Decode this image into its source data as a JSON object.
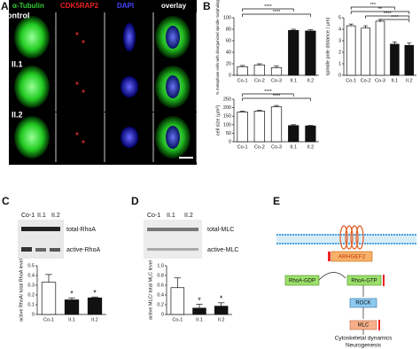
{
  "panel_a": {
    "label": "A",
    "columns": [
      "α-Tubulin",
      "CDK5RAP2",
      "DAPI",
      "overlay"
    ],
    "rows": [
      "control",
      "II.1",
      "II.2"
    ]
  },
  "panel_b": {
    "label": "B"
  },
  "panel_c": {
    "label": "C",
    "lanes": [
      "Co-1",
      "II.1",
      "II.2"
    ],
    "bands": [
      "total-RhoA",
      "active-RhoA"
    ]
  },
  "panel_d": {
    "label": "D",
    "lanes": [
      "Co-1",
      "II.1",
      "II.2"
    ],
    "bands": [
      "total-MLC",
      "active-MLC"
    ]
  },
  "panel_e": {
    "label": "E",
    "nodes": [
      "ARHGEF2",
      "RhoA-GDP",
      "RhoA-GTP",
      "ROCK",
      "MLC"
    ],
    "outcomes": [
      "Cytoskeletal dynamics",
      "Neurogenesis"
    ]
  },
  "chart_data": [
    {
      "type": "bar",
      "ylabel": "% metaphase cells with disorganized spindle morphology",
      "categories": [
        "Co-1",
        "Co-2",
        "Co-3",
        "II.1",
        "II.2"
      ],
      "values": [
        15,
        18,
        13,
        78,
        77
      ],
      "errors": [
        2,
        2,
        3,
        2,
        2
      ],
      "colors": [
        "#ffffff",
        "#ffffff",
        "#ffffff",
        "#111111",
        "#111111"
      ],
      "ylim": [
        0,
        100
      ],
      "yticks": [
        0,
        20,
        40,
        60,
        80,
        100
      ],
      "annotations": [
        "****",
        "****"
      ]
    },
    {
      "type": "bar",
      "ylabel": "spindle pole distance ( µm)",
      "categories": [
        "Co-1",
        "Co-2",
        "Co-3",
        "II.1",
        "II.2"
      ],
      "values": [
        4.3,
        4.1,
        4.7,
        2.7,
        2.6
      ],
      "errors": [
        0.15,
        0.2,
        0.15,
        0.2,
        0.2
      ],
      "colors": [
        "#ffffff",
        "#ffffff",
        "#ffffff",
        "#111111",
        "#111111"
      ],
      "ylim": [
        0,
        5
      ],
      "yticks": [
        0,
        1,
        2,
        3,
        4,
        5
      ],
      "annotations": [
        "***",
        "**",
        "****",
        "****"
      ]
    },
    {
      "type": "bar",
      "ylabel": "cell size (µm²)",
      "categories": [
        "Co-1",
        "Co-2",
        "Co-3",
        "II.1",
        "II.2"
      ],
      "values": [
        175,
        180,
        205,
        95,
        93
      ],
      "errors": [
        5,
        5,
        8,
        5,
        3
      ],
      "colors": [
        "#ffffff",
        "#ffffff",
        "#ffffff",
        "#111111",
        "#111111"
      ],
      "ylim": [
        0,
        250
      ],
      "yticks": [
        0,
        50,
        100,
        150,
        200,
        250
      ],
      "annotations": [
        "****",
        "****"
      ]
    },
    {
      "type": "bar",
      "ylabel": "active RhoA/ total RhoA level",
      "categories": [
        "Co-1",
        "II.1",
        "II.2"
      ],
      "values": [
        0.33,
        0.15,
        0.17
      ],
      "errors": [
        0.08,
        0.02,
        0.01
      ],
      "colors": [
        "#ffffff",
        "#111111",
        "#111111"
      ],
      "ylim": [
        0,
        0.5
      ],
      "yticks": [
        0,
        0.1,
        0.2,
        0.3,
        0.4,
        0.5
      ],
      "annotations": [
        "*",
        "*"
      ]
    },
    {
      "type": "bar",
      "ylabel": "active MLC/ total MLC level",
      "categories": [
        "Co-1",
        "II.1",
        "II.2"
      ],
      "values": [
        0.55,
        0.13,
        0.17
      ],
      "errors": [
        0.2,
        0.08,
        0.07
      ],
      "colors": [
        "#ffffff",
        "#111111",
        "#111111"
      ],
      "ylim": [
        0,
        1
      ],
      "yticks": [
        0,
        0.2,
        0.4,
        0.6,
        0.8,
        {
          "value": 1,
          "label": "1.0"
        }
      ],
      "annotations": [
        "*",
        "*"
      ]
    }
  ]
}
